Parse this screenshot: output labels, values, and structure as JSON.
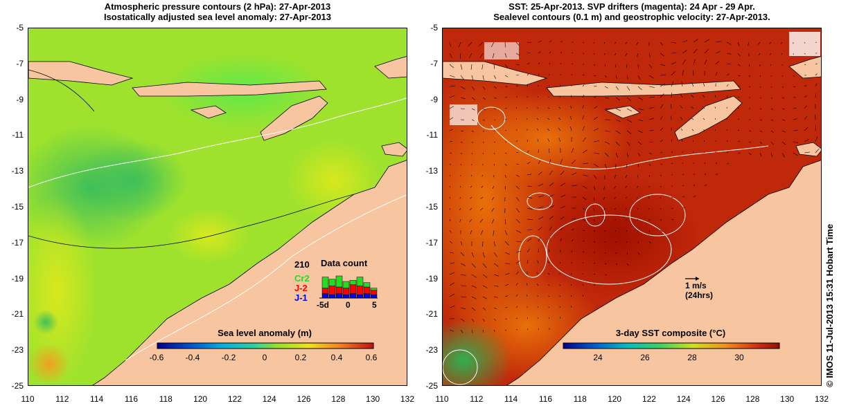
{
  "left_panel": {
    "title_line1": "Atmospheric pressure contours (2 hPa): 27-Apr-2013",
    "title_line2": "Isostatically adjusted sea level anomaly: 27-Apr-2013",
    "colorbar_title": "Sea level anomaly (m)",
    "colorbar_ticks": [
      "-0.6",
      "-0.4",
      "-0.2",
      "0",
      "0.2",
      "0.4",
      "0.6"
    ],
    "data_count": {
      "title": "Data count",
      "total": "210",
      "legend": [
        {
          "label": "Cr2",
          "color": "#22dd22"
        },
        {
          "label": "J-2",
          "color": "#ff0000"
        },
        {
          "label": "J-1",
          "color": "#0000ff"
        }
      ],
      "axis_labels": [
        "-5d",
        "0",
        "5"
      ]
    }
  },
  "right_panel": {
    "title_line1": "SST: 25-Apr-2013. SVP drifters (magenta): 24 Apr - 29 Apr.",
    "title_line2": "Sealevel contours (0.1 m) and geostrophic velocity: 27-Apr-2013.",
    "colorbar_title": "3-day SST composite (°C)",
    "colorbar_ticks": [
      "24",
      "26",
      "28",
      "30"
    ],
    "scale_label_1": "1 m/s",
    "scale_label_2": "(24hrs)"
  },
  "axes": {
    "x_ticks": [
      "110",
      "112",
      "114",
      "116",
      "118",
      "120",
      "122",
      "124",
      "126",
      "128",
      "130",
      "132"
    ],
    "y_ticks": [
      "-5",
      "-7",
      "-9",
      "-11",
      "-13",
      "-15",
      "-17",
      "-19",
      "-21",
      "-23",
      "-25"
    ]
  },
  "credit": "© IMOS 11-Jul-2013 15:31 Hobart Time",
  "colors": {
    "land": "#f7c59f",
    "sla_base": "#9ee22e",
    "sst_base": "#c0280a"
  }
}
